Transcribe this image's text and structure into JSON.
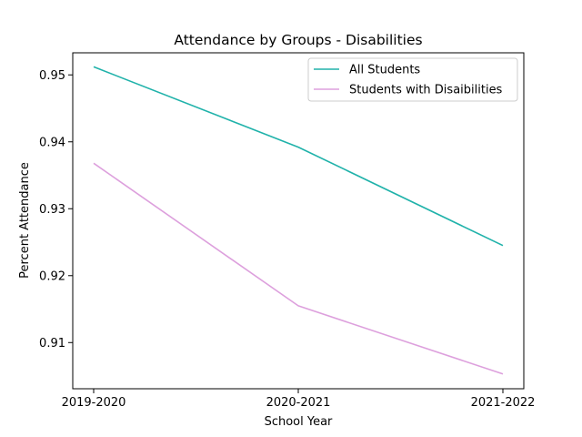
{
  "chart_data": {
    "type": "line",
    "title": "Attendance by Groups - Disabilities",
    "xlabel": "School Year",
    "ylabel": "Percent Attendance",
    "categories": [
      "2019-2020",
      "2020-2021",
      "2021-2022"
    ],
    "ylim": [
      0.9031,
      0.9533
    ],
    "yticks": [
      0.91,
      0.92,
      0.93,
      0.94,
      0.95
    ],
    "ytick_labels": [
      "0.91",
      "0.92",
      "0.93",
      "0.94",
      "0.95"
    ],
    "grid": false,
    "legend_position": "top-right",
    "series": [
      {
        "name": "All Students",
        "color": "#20b2aa",
        "values": [
          0.9512,
          0.9392,
          0.9245
        ]
      },
      {
        "name": "Students with Disaibilities",
        "color": "#dda0dd",
        "values": [
          0.9368,
          0.9155,
          0.9053
        ]
      }
    ]
  }
}
